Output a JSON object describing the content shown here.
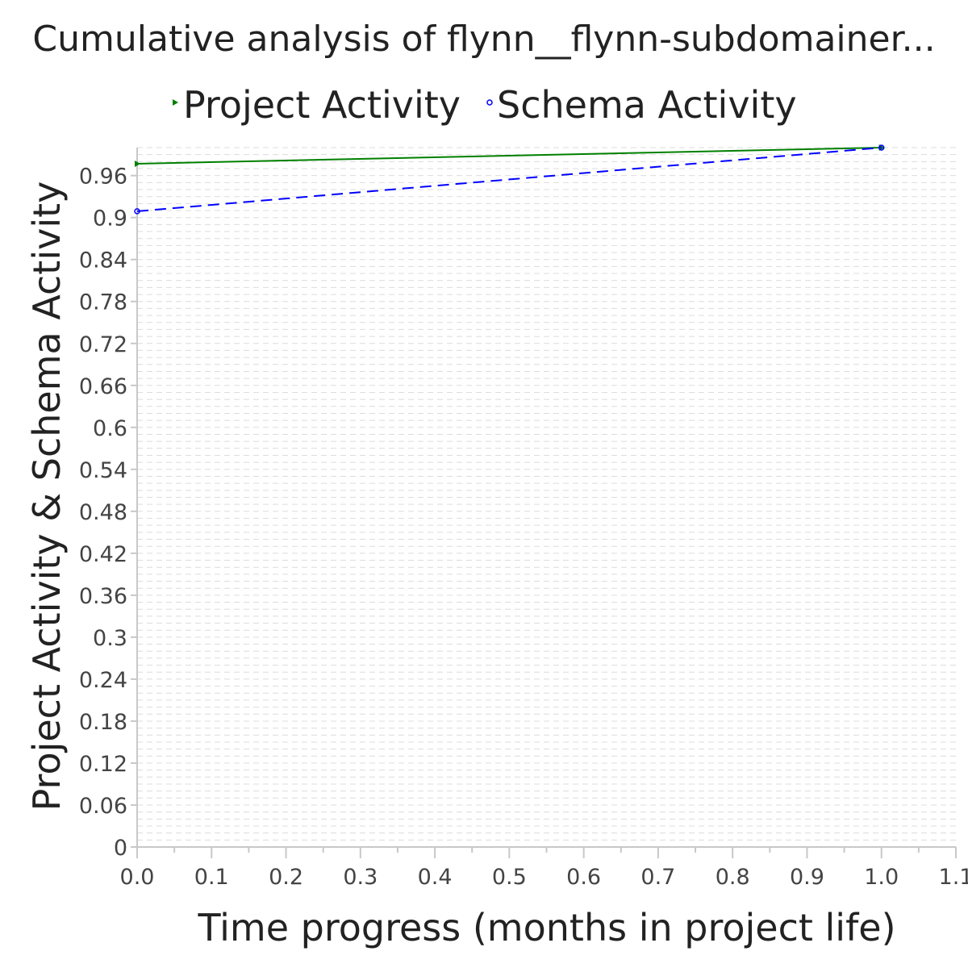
{
  "chart_data": {
    "type": "line",
    "title": "Cumulative analysis of flynn__flynn-subdomainer...",
    "xlabel": "Time progress (months in project life)",
    "ylabel": "Project Activity & Schema Activity",
    "xlim": [
      0.0,
      1.1
    ],
    "ylim": [
      0,
      1.0
    ],
    "x_ticks": [
      "0.0",
      "0.1",
      "0.2",
      "0.3",
      "0.4",
      "0.5",
      "0.6",
      "0.7",
      "0.8",
      "0.9",
      "1.0",
      "1.1"
    ],
    "y_ticks": [
      "0",
      "0.06",
      "0.12",
      "0.18",
      "0.24",
      "0.3",
      "0.36",
      "0.42",
      "0.48",
      "0.54",
      "0.6",
      "0.66",
      "0.72",
      "0.78",
      "0.84",
      "0.9",
      "0.96"
    ],
    "grid": true,
    "legend_position": "top",
    "series": [
      {
        "name": "Project Activity",
        "color": "#008000",
        "style": "solid",
        "marker": "triangle",
        "x": [
          0.0,
          1.0
        ],
        "y": [
          0.977,
          1.0
        ]
      },
      {
        "name": "Schema Activity",
        "color": "#0000ff",
        "style": "dashed",
        "marker": "circle",
        "x": [
          0.0,
          1.0
        ],
        "y": [
          0.909,
          1.0
        ]
      }
    ]
  }
}
